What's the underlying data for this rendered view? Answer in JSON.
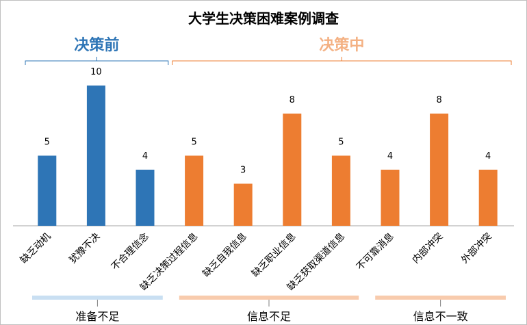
{
  "chart_data": {
    "type": "bar",
    "title": "大学生决策困难案例调查",
    "categories": [
      "缺乏动机",
      "犹豫不决",
      "不合理信念",
      "缺乏决策过程信息",
      "缺乏自我信息",
      "缺乏职业信息",
      "缺乏获取渠道信息",
      "不可靠消息",
      "内部冲突",
      "外部冲突"
    ],
    "values": [
      5,
      10,
      4,
      5,
      3,
      8,
      5,
      4,
      8,
      4
    ],
    "ylim": [
      0,
      10
    ],
    "grid": false,
    "phases": [
      {
        "label": "决策前",
        "color": "#2e75b6",
        "from": 0,
        "to": 2
      },
      {
        "label": "决策中",
        "color": "#ed7d31",
        "from": 3,
        "to": 9
      }
    ],
    "groups": [
      {
        "label": "准备不足",
        "color": "#c9dff2",
        "from": 0,
        "to": 2
      },
      {
        "label": "信息不足",
        "color": "#f8cbad",
        "from": 3,
        "to": 6
      },
      {
        "label": "信息不一致",
        "color": "#f8cbad",
        "from": 7,
        "to": 9
      }
    ],
    "phase_label_colors": {
      "决策前": "#2e75b6",
      "决策中": "#f4b183"
    },
    "colors": {
      "before": "#2e75b6",
      "during": "#ed7d31",
      "axis": "#a6a6a6",
      "text": "#000000"
    }
  }
}
